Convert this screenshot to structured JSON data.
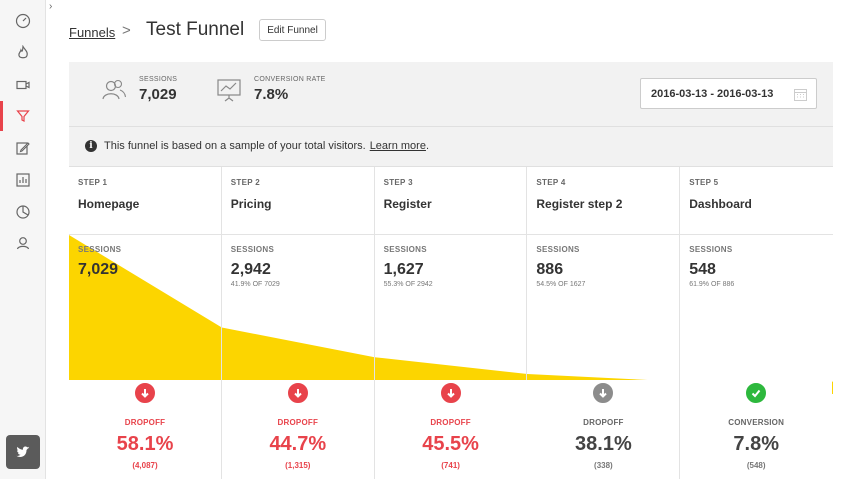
{
  "breadcrumb": {
    "parent": "Funnels",
    "separator": ">",
    "title": "Test Funnel"
  },
  "toolbar": {
    "edit_label": "Edit Funnel"
  },
  "stats": {
    "sessions": {
      "label": "SESSIONS",
      "value": "7,029"
    },
    "conversion": {
      "label": "CONVERSION RATE",
      "value": "7.8%"
    }
  },
  "date_range": "2016-03-13 - 2016-03-13",
  "notice": {
    "text": "This funnel is based on a sample of your total visitors.",
    "link": "Learn more",
    "tail": "."
  },
  "colors": {
    "accent_red": "#e8434b",
    "funnel_yellow": "#fcd500",
    "success_green": "#2db83d",
    "neutral_gray": "#8c8c8c"
  },
  "steps": [
    {
      "num": "STEP 1",
      "name": "Homepage",
      "sessions_label": "SESSIONS",
      "sessions": "7,029",
      "pct": "",
      "sessions_value": 7029,
      "drop_label": "DROPOFF",
      "drop_value": "58.1%",
      "drop_count": "(4,087)",
      "kind": "drop"
    },
    {
      "num": "STEP 2",
      "name": "Pricing",
      "sessions_label": "SESSIONS",
      "sessions": "2,942",
      "pct": "41.9% OF 7029",
      "sessions_value": 2942,
      "drop_label": "DROPOFF",
      "drop_value": "44.7%",
      "drop_count": "(1,315)",
      "kind": "drop"
    },
    {
      "num": "STEP 3",
      "name": "Register",
      "sessions_label": "SESSIONS",
      "sessions": "1,627",
      "pct": "55.3% OF 2942",
      "sessions_value": 1627,
      "drop_label": "DROPOFF",
      "drop_value": "45.5%",
      "drop_count": "(741)",
      "kind": "drop"
    },
    {
      "num": "STEP 4",
      "name": "Register step 2",
      "sessions_label": "SESSIONS",
      "sessions": "886",
      "pct": "54.5% OF 1627",
      "sessions_value": 886,
      "drop_label": "DROPOFF",
      "drop_value": "38.1%",
      "drop_count": "(338)",
      "kind": "neutral"
    },
    {
      "num": "STEP 5",
      "name": "Dashboard",
      "sessions_label": "SESSIONS",
      "sessions": "548",
      "pct": "61.9% OF 886",
      "sessions_value": 548,
      "drop_label": "CONVERSION",
      "drop_value": "7.8%",
      "drop_count": "(548)",
      "kind": "conversion"
    }
  ]
}
